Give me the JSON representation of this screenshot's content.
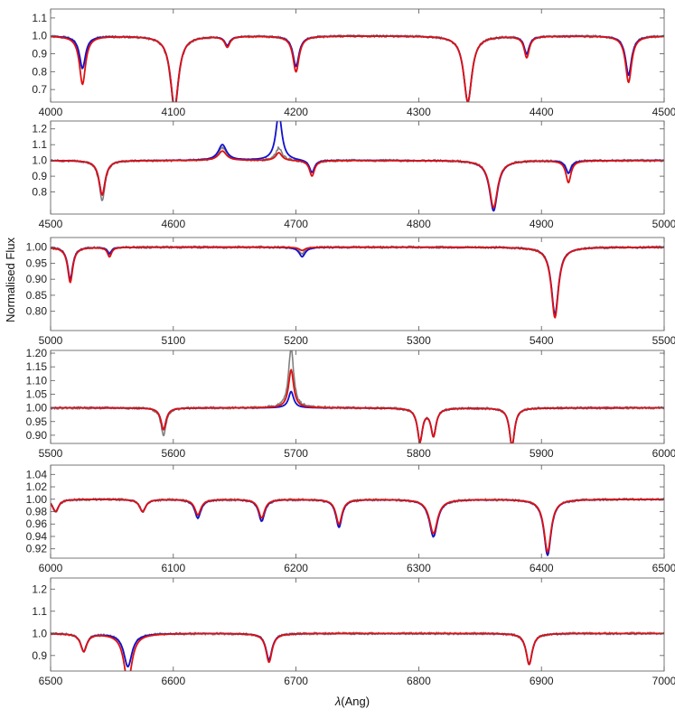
{
  "chart_data": {
    "type": "line",
    "ylabel": "Normalised Flux",
    "xlabel_italic": "λ",
    "xlabel_rest": "(Ang)",
    "colors": {
      "observed": "#808080",
      "model_blue": "#1010d0",
      "model_red": "#e01010"
    },
    "series_names": [
      "observed",
      "model_blue",
      "model_red"
    ],
    "panels": [
      {
        "xlim": [
          4000,
          4500
        ],
        "ylim": [
          0.63,
          1.15
        ],
        "xticks": [
          4000,
          4100,
          4200,
          4300,
          4400,
          4500
        ],
        "xtick_labels": [
          "4000",
          "4100",
          "4200",
          "4300",
          "4400",
          "4500"
        ],
        "yticks": [
          0.7,
          0.8,
          0.9,
          1.0,
          1.1
        ],
        "ytick_labels": [
          "0.7",
          "0.8",
          "0.9",
          "1.0",
          "1.1"
        ],
        "lines": [
          {
            "c": 4026,
            "w": 3,
            "d": [
              0.18,
              0.18,
              0.27
            ]
          },
          {
            "c": 4101,
            "w": 4,
            "d": [
              0.42,
              0.4,
              0.4
            ]
          },
          {
            "c": 4144,
            "w": 2.5,
            "d": [
              0.05,
              0.05,
              0.06
            ]
          },
          {
            "c": 4200,
            "w": 3,
            "d": [
              0.17,
              0.17,
              0.2
            ]
          },
          {
            "c": 4340,
            "w": 4,
            "d": [
              0.37,
              0.37,
              0.37
            ]
          },
          {
            "c": 4388,
            "w": 2.5,
            "d": [
              0.1,
              0.1,
              0.12
            ]
          },
          {
            "c": 4471,
            "w": 3,
            "d": [
              0.22,
              0.22,
              0.26
            ]
          }
        ]
      },
      {
        "xlim": [
          4500,
          5000
        ],
        "ylim": [
          0.66,
          1.25
        ],
        "xticks": [
          4500,
          4600,
          4700,
          4800,
          4900,
          5000
        ],
        "xtick_labels": [
          "4500",
          "4600",
          "4700",
          "4800",
          "4900",
          "5000"
        ],
        "yticks": [
          0.8,
          0.9,
          1.0,
          1.1,
          1.2
        ],
        "ytick_labels": [
          "0.8",
          "0.9",
          "1.0",
          "1.1",
          "1.2"
        ],
        "lines": [
          {
            "c": 4542,
            "w": 3,
            "d": [
              0.25,
              0.22,
              0.22
            ]
          },
          {
            "c": 4640,
            "w": 4,
            "d": [
              -0.08,
              -0.1,
              -0.06
            ]
          },
          {
            "c": 4686,
            "w": 3,
            "d": [
              -0.08,
              -0.3,
              -0.05
            ]
          },
          {
            "c": 4713,
            "w": 2.5,
            "d": [
              0.08,
              0.08,
              0.1
            ]
          },
          {
            "c": 4861,
            "w": 4,
            "d": [
              0.3,
              0.32,
              0.3
            ]
          },
          {
            "c": 4922,
            "w": 2.5,
            "d": [
              0.08,
              0.08,
              0.14
            ]
          }
        ]
      },
      {
        "xlim": [
          5000,
          5500
        ],
        "ylim": [
          0.74,
          1.03
        ],
        "xticks": [
          5000,
          5100,
          5200,
          5300,
          5400,
          5500
        ],
        "xtick_labels": [
          "5000",
          "5100",
          "5200",
          "5300",
          "5400",
          "5500"
        ],
        "yticks": [
          0.8,
          0.85,
          0.9,
          0.95,
          1.0
        ],
        "ytick_labels": [
          "0.80",
          "0.85",
          "0.90",
          "0.95",
          "1.00"
        ],
        "lines": [
          {
            "c": 5016,
            "w": 2.5,
            "d": [
              0.1,
              0.1,
              0.11
            ]
          },
          {
            "c": 5048,
            "w": 2,
            "d": [
              0.02,
              0.02,
              0.03
            ]
          },
          {
            "c": 5205,
            "w": 3,
            "d": [
              0.02,
              0.03,
              0.01
            ]
          },
          {
            "c": 5411,
            "w": 3.5,
            "d": [
              0.21,
              0.21,
              0.22
            ]
          }
        ]
      },
      {
        "xlim": [
          5500,
          6000
        ],
        "ylim": [
          0.87,
          1.21
        ],
        "xticks": [
          5500,
          5600,
          5700,
          5800,
          5900,
          6000
        ],
        "xtick_labels": [
          "5500",
          "5600",
          "5700",
          "5800",
          "5900",
          "6000"
        ],
        "yticks": [
          0.9,
          0.95,
          1.0,
          1.05,
          1.1,
          1.15,
          1.2
        ],
        "ytick_labels": [
          "0.90",
          "0.95",
          "1.00",
          "1.05",
          "1.10",
          "1.15",
          "1.20"
        ],
        "lines": [
          {
            "c": 5592,
            "w": 2.5,
            "d": [
              0.1,
              0.08,
              0.08
            ]
          },
          {
            "c": 5696,
            "w": 2.5,
            "d": [
              -0.22,
              -0.06,
              -0.14
            ]
          },
          {
            "c": 5801,
            "w": 2.5,
            "d": [
              0.12,
              0.12,
              0.12
            ]
          },
          {
            "c": 5812,
            "w": 2.5,
            "d": [
              0.1,
              0.1,
              0.1
            ]
          },
          {
            "c": 5876,
            "w": 2.5,
            "d": [
              0.14,
              0.14,
              0.14
            ]
          }
        ]
      },
      {
        "xlim": [
          6000,
          6500
        ],
        "ylim": [
          0.905,
          1.055
        ],
        "xticks": [
          6000,
          6100,
          6200,
          6300,
          6400,
          6500
        ],
        "xtick_labels": [
          "6000",
          "6100",
          "6200",
          "6300",
          "6400",
          "6500"
        ],
        "yticks": [
          0.92,
          0.94,
          0.96,
          0.98,
          1.0,
          1.02,
          1.04
        ],
        "ytick_labels": [
          "0.92",
          "0.94",
          "0.96",
          "0.98",
          "1.00",
          "1.02",
          "1.04"
        ],
        "lines": [
          {
            "c": 6004,
            "w": 3,
            "d": [
              0.02,
              0.02,
              0.02
            ]
          },
          {
            "c": 6075,
            "w": 3,
            "d": [
              0.02,
              0.02,
              0.02
            ]
          },
          {
            "c": 6120,
            "w": 3,
            "d": [
              0.03,
              0.03,
              0.025
            ]
          },
          {
            "c": 6172,
            "w": 3,
            "d": [
              0.035,
              0.035,
              0.03
            ]
          },
          {
            "c": 6235,
            "w": 3,
            "d": [
              0.045,
              0.045,
              0.04
            ]
          },
          {
            "c": 6312,
            "w": 4,
            "d": [
              0.06,
              0.06,
              0.055
            ]
          },
          {
            "c": 6405,
            "w": 3.5,
            "d": [
              0.09,
              0.09,
              0.085
            ]
          }
        ]
      },
      {
        "xlim": [
          6500,
          7000
        ],
        "ylim": [
          0.83,
          1.25
        ],
        "xticks": [
          6500,
          6600,
          6700,
          6800,
          6900,
          7000
        ],
        "xtick_labels": [
          "6500",
          "6600",
          "6700",
          "6800",
          "6900",
          "7000"
        ],
        "yticks": [
          0.9,
          1.0,
          1.1,
          1.2
        ],
        "ytick_labels": [
          "0.9",
          "1.0",
          "1.1",
          "1.2"
        ],
        "lines": [
          {
            "c": 6527,
            "w": 3,
            "d": [
              0.08,
              0.08,
              0.08
            ]
          },
          {
            "c": 6563,
            "w": 4,
            "d": [
              0.15,
              0.15,
              0.22
            ]
          },
          {
            "c": 6678,
            "w": 3,
            "d": [
              0.12,
              0.12,
              0.13
            ]
          },
          {
            "c": 6890,
            "w": 3,
            "d": [
              0.14,
              0.14,
              0.14
            ]
          }
        ]
      }
    ]
  }
}
